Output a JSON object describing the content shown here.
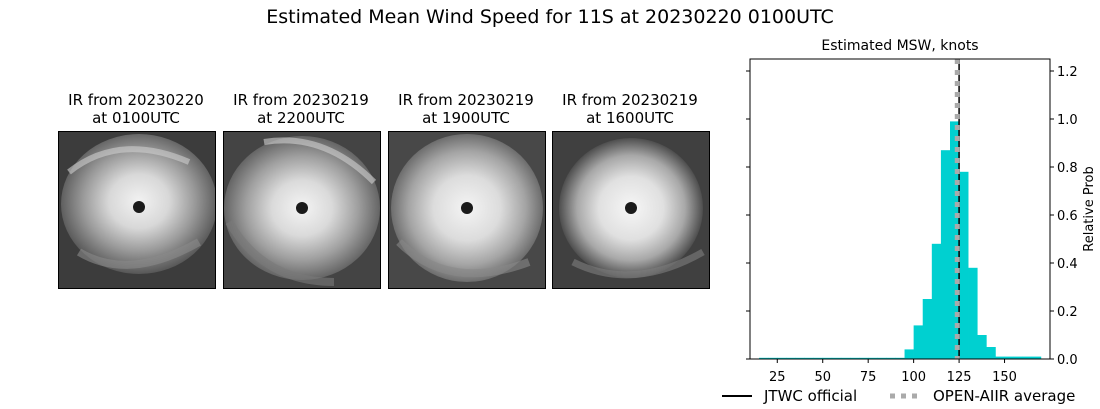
{
  "title": "Estimated Mean Wind Speed for 11S at 20230220 0100UTC",
  "ir_panels": [
    {
      "line1": "IR from 20230220",
      "line2": "at 0100UTC"
    },
    {
      "line1": "IR from 20230219",
      "line2": "at 2200UTC"
    },
    {
      "line1": "IR from 20230219",
      "line2": "at 1900UTC"
    },
    {
      "line1": "IR from 20230219",
      "line2": "at 1600UTC"
    }
  ],
  "chart_data": {
    "type": "bar",
    "title": "Estimated MSW, knots",
    "xlabel": "",
    "ylabel": "Relative Prob",
    "xlim": [
      10,
      175
    ],
    "ylim": [
      0,
      1.25
    ],
    "xticks": [
      25,
      50,
      75,
      100,
      125,
      150
    ],
    "yticks": [
      0.0,
      0.2,
      0.4,
      0.6,
      0.8,
      1.0,
      1.2
    ],
    "ytick_labels": [
      "0.0",
      "0.2",
      "0.4",
      "0.6",
      "0.8",
      "1.0",
      "1.2"
    ],
    "yaxis_position": "right",
    "bar_color": "#00d0d0",
    "bar_width": 5,
    "bars": [
      {
        "x": 17.5,
        "value": 0.005
      },
      {
        "x": 22.5,
        "value": 0.005
      },
      {
        "x": 27.5,
        "value": 0.005
      },
      {
        "x": 32.5,
        "value": 0.005
      },
      {
        "x": 37.5,
        "value": 0.005
      },
      {
        "x": 42.5,
        "value": 0.005
      },
      {
        "x": 47.5,
        "value": 0.005
      },
      {
        "x": 52.5,
        "value": 0.005
      },
      {
        "x": 57.5,
        "value": 0.005
      },
      {
        "x": 62.5,
        "value": 0.005
      },
      {
        "x": 67.5,
        "value": 0.005
      },
      {
        "x": 72.5,
        "value": 0.005
      },
      {
        "x": 77.5,
        "value": 0.005
      },
      {
        "x": 82.5,
        "value": 0.005
      },
      {
        "x": 87.5,
        "value": 0.005
      },
      {
        "x": 92.5,
        "value": 0.005
      },
      {
        "x": 97.5,
        "value": 0.04
      },
      {
        "x": 102.5,
        "value": 0.14
      },
      {
        "x": 107.5,
        "value": 0.25
      },
      {
        "x": 112.5,
        "value": 0.48
      },
      {
        "x": 117.5,
        "value": 0.87
      },
      {
        "x": 122.5,
        "value": 0.99
      },
      {
        "x": 127.5,
        "value": 0.78
      },
      {
        "x": 132.5,
        "value": 0.38
      },
      {
        "x": 137.5,
        "value": 0.1
      },
      {
        "x": 142.5,
        "value": 0.05
      },
      {
        "x": 147.5,
        "value": 0.01
      },
      {
        "x": 152.5,
        "value": 0.01
      },
      {
        "x": 157.5,
        "value": 0.01
      },
      {
        "x": 162.5,
        "value": 0.01
      },
      {
        "x": 167.5,
        "value": 0.01
      }
    ],
    "lines": [
      {
        "name": "JTWC official",
        "x": 125,
        "color": "#000000",
        "style": "solid"
      },
      {
        "name": "OPEN-AIIR average",
        "x": 124,
        "color": "#aaaaaa",
        "style": "dotted"
      }
    ],
    "legend_position": "bottom"
  }
}
